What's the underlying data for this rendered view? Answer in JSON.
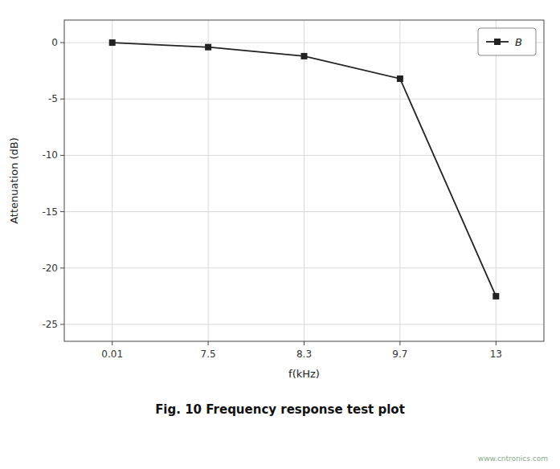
{
  "chart_data": {
    "type": "line",
    "title": "Fig. 10    Frequency response test plot",
    "x_label": "f(kHz)",
    "y_label": "Attenuation (dB)",
    "categories": [
      "0.01",
      "7.5",
      "8.3",
      "9.7",
      "13"
    ],
    "series": [
      {
        "name": "B",
        "color": "#222222",
        "marker": "square",
        "values": [
          0,
          -0.4,
          -1.2,
          -3.2,
          -22.5
        ]
      }
    ],
    "ylim": [
      -26.5,
      2.0
    ],
    "yticks": [
      0,
      -5,
      -10,
      -15,
      -20,
      -25
    ],
    "grid": true,
    "legend": "upper right",
    "annotations": [
      "www.cntronics.com"
    ]
  }
}
